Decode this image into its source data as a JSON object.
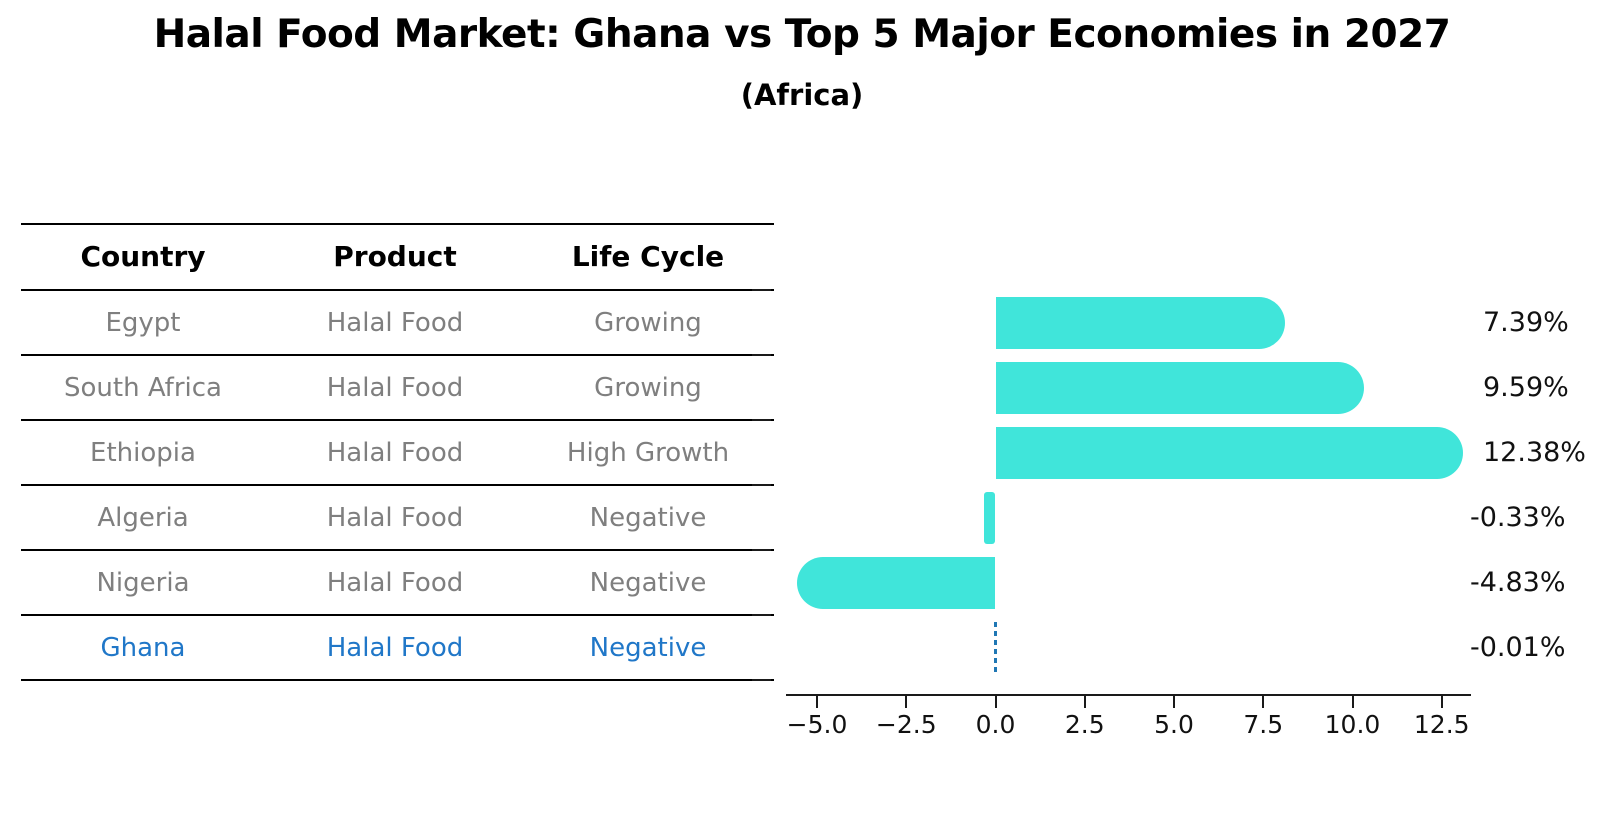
{
  "header": {
    "title": "Halal Food Market: Ghana vs Top 5 Major Economies in 2027",
    "subtitle": "(Africa)"
  },
  "table": {
    "columns": [
      "Country",
      "Product",
      "Life Cycle"
    ],
    "rows": [
      {
        "country": "Egypt",
        "product": "Halal Food",
        "life_cycle": "Growing",
        "highlight": false
      },
      {
        "country": "South Africa",
        "product": "Halal Food",
        "life_cycle": "Growing",
        "highlight": false
      },
      {
        "country": "Ethiopia",
        "product": "Halal Food",
        "life_cycle": "High Growth",
        "highlight": false
      },
      {
        "country": "Algeria",
        "product": "Halal Food",
        "life_cycle": "Negative",
        "highlight": false
      },
      {
        "country": "Nigeria",
        "product": "Halal Food",
        "life_cycle": "Negative",
        "highlight": false
      },
      {
        "country": "Ghana",
        "product": "Halal Food",
        "life_cycle": "Negative",
        "highlight": true
      }
    ]
  },
  "chart_data": {
    "type": "bar",
    "orientation": "horizontal",
    "title": "Halal Food Market: Ghana vs Top 5 Major Economies in 2027",
    "subtitle": "(Africa)",
    "categories": [
      "Egypt",
      "South Africa",
      "Ethiopia",
      "Algeria",
      "Nigeria",
      "Ghana"
    ],
    "values": [
      7.39,
      9.59,
      12.38,
      -0.33,
      -4.83,
      -0.01
    ],
    "unit": "%",
    "value_labels": [
      "7.39%",
      "9.59%",
      "12.38%",
      "-0.33%",
      "-4.83%",
      "-0.01%"
    ],
    "xlabel": "",
    "ylabel": "",
    "xlim": [
      -5.85,
      13.3
    ],
    "x_ticks": [
      -5.0,
      -2.5,
      0.0,
      2.5,
      5.0,
      7.5,
      10.0,
      12.5
    ],
    "x_tick_labels": [
      "−5.0",
      "−2.5",
      "0.0",
      "2.5",
      "5.0",
      "7.5",
      "10.0",
      "12.5"
    ],
    "grid": false,
    "legend": null,
    "bar_color": "#40e5da",
    "highlight_category": "Ghana",
    "highlight_style": "dashed-blue-line"
  },
  "colors": {
    "background": "#ffffff",
    "bar_turquoise": "#40e5da",
    "highlight_blue": "#2077c8",
    "ghana_dash_blue": "#1f77b4",
    "row_text_gray": "#7f7f7f",
    "axis_black": "#1a1a1a"
  }
}
